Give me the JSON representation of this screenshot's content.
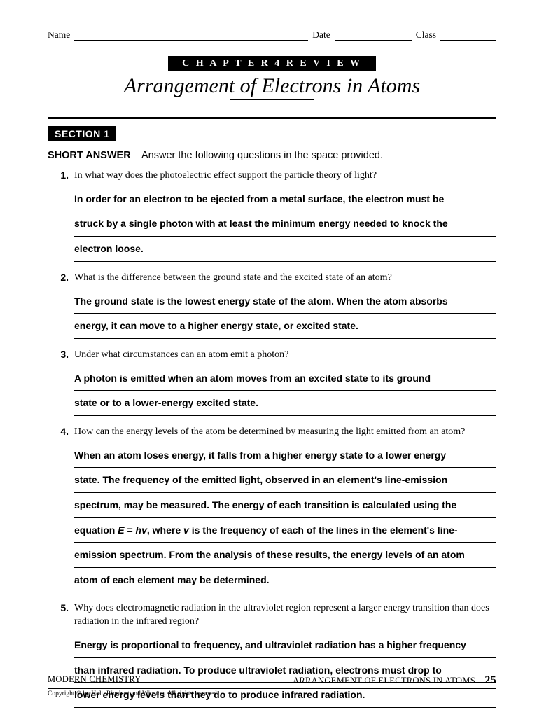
{
  "header": {
    "name_label": "Name",
    "date_label": "Date",
    "class_label": "Class"
  },
  "chapter_banner": "C H A P T E R  4  R E V I E W",
  "chapter_title": "Arrangement of Electrons in Atoms",
  "section_tag": "SECTION 1",
  "instructions_label": "SHORT ANSWER",
  "instructions_text": "Answer the following questions in the space provided.",
  "questions": [
    {
      "num": "1.",
      "text": "In what way does the photoelectric effect support the particle theory of light?",
      "answer_lines": [
        "In order for an electron to be ejected from a metal surface, the electron must be",
        "struck by a single photon with at least the minimum energy needed to knock the",
        "electron loose."
      ]
    },
    {
      "num": "2.",
      "text": "What is the difference between the ground state and the excited state of an atom?",
      "answer_lines": [
        "The ground state is the lowest energy state of the atom. When the atom absorbs",
        "energy, it can move to a higher energy state, or excited state."
      ]
    },
    {
      "num": "3.",
      "text": "Under what circumstances can an atom emit a photon?",
      "answer_lines": [
        "A photon is emitted when an atom moves from an excited state to its ground",
        "state or to a lower-energy excited state."
      ]
    },
    {
      "num": "4.",
      "text": "How can the energy levels of the atom be determined by measuring the light emitted from an atom?",
      "answer_lines": [
        "When an atom loses energy, it falls from a higher energy state to a lower energy",
        "state. The frequency of the emitted light, observed in an element's line-emission",
        "spectrum, may be measured. The energy of each transition is calculated using the",
        "equation E = hv, where v is the frequency of each of the lines in the element's line-",
        "emission spectrum. From the analysis of these results, the energy levels of an atom",
        "atom of each element may be determined."
      ]
    },
    {
      "num": "5.",
      "text": "Why does electromagnetic radiation in the ultraviolet region represent a larger energy transition than does radiation in the infrared region?",
      "answer_lines": [
        "Energy is proportional to frequency, and ultraviolet radiation has a higher frequency",
        "than infrared radiation. To produce ultraviolet radiation, electrons must drop to",
        "lower energy levels than they do to produce infrared radiation."
      ]
    }
  ],
  "footer": {
    "left": "MODERN CHEMISTRY",
    "right": "ARRANGEMENT OF ELECTRONS IN ATOMS",
    "page": "25",
    "copyright": "Copyright © by Holt, Rinehart and Winston. All rights reserved."
  }
}
